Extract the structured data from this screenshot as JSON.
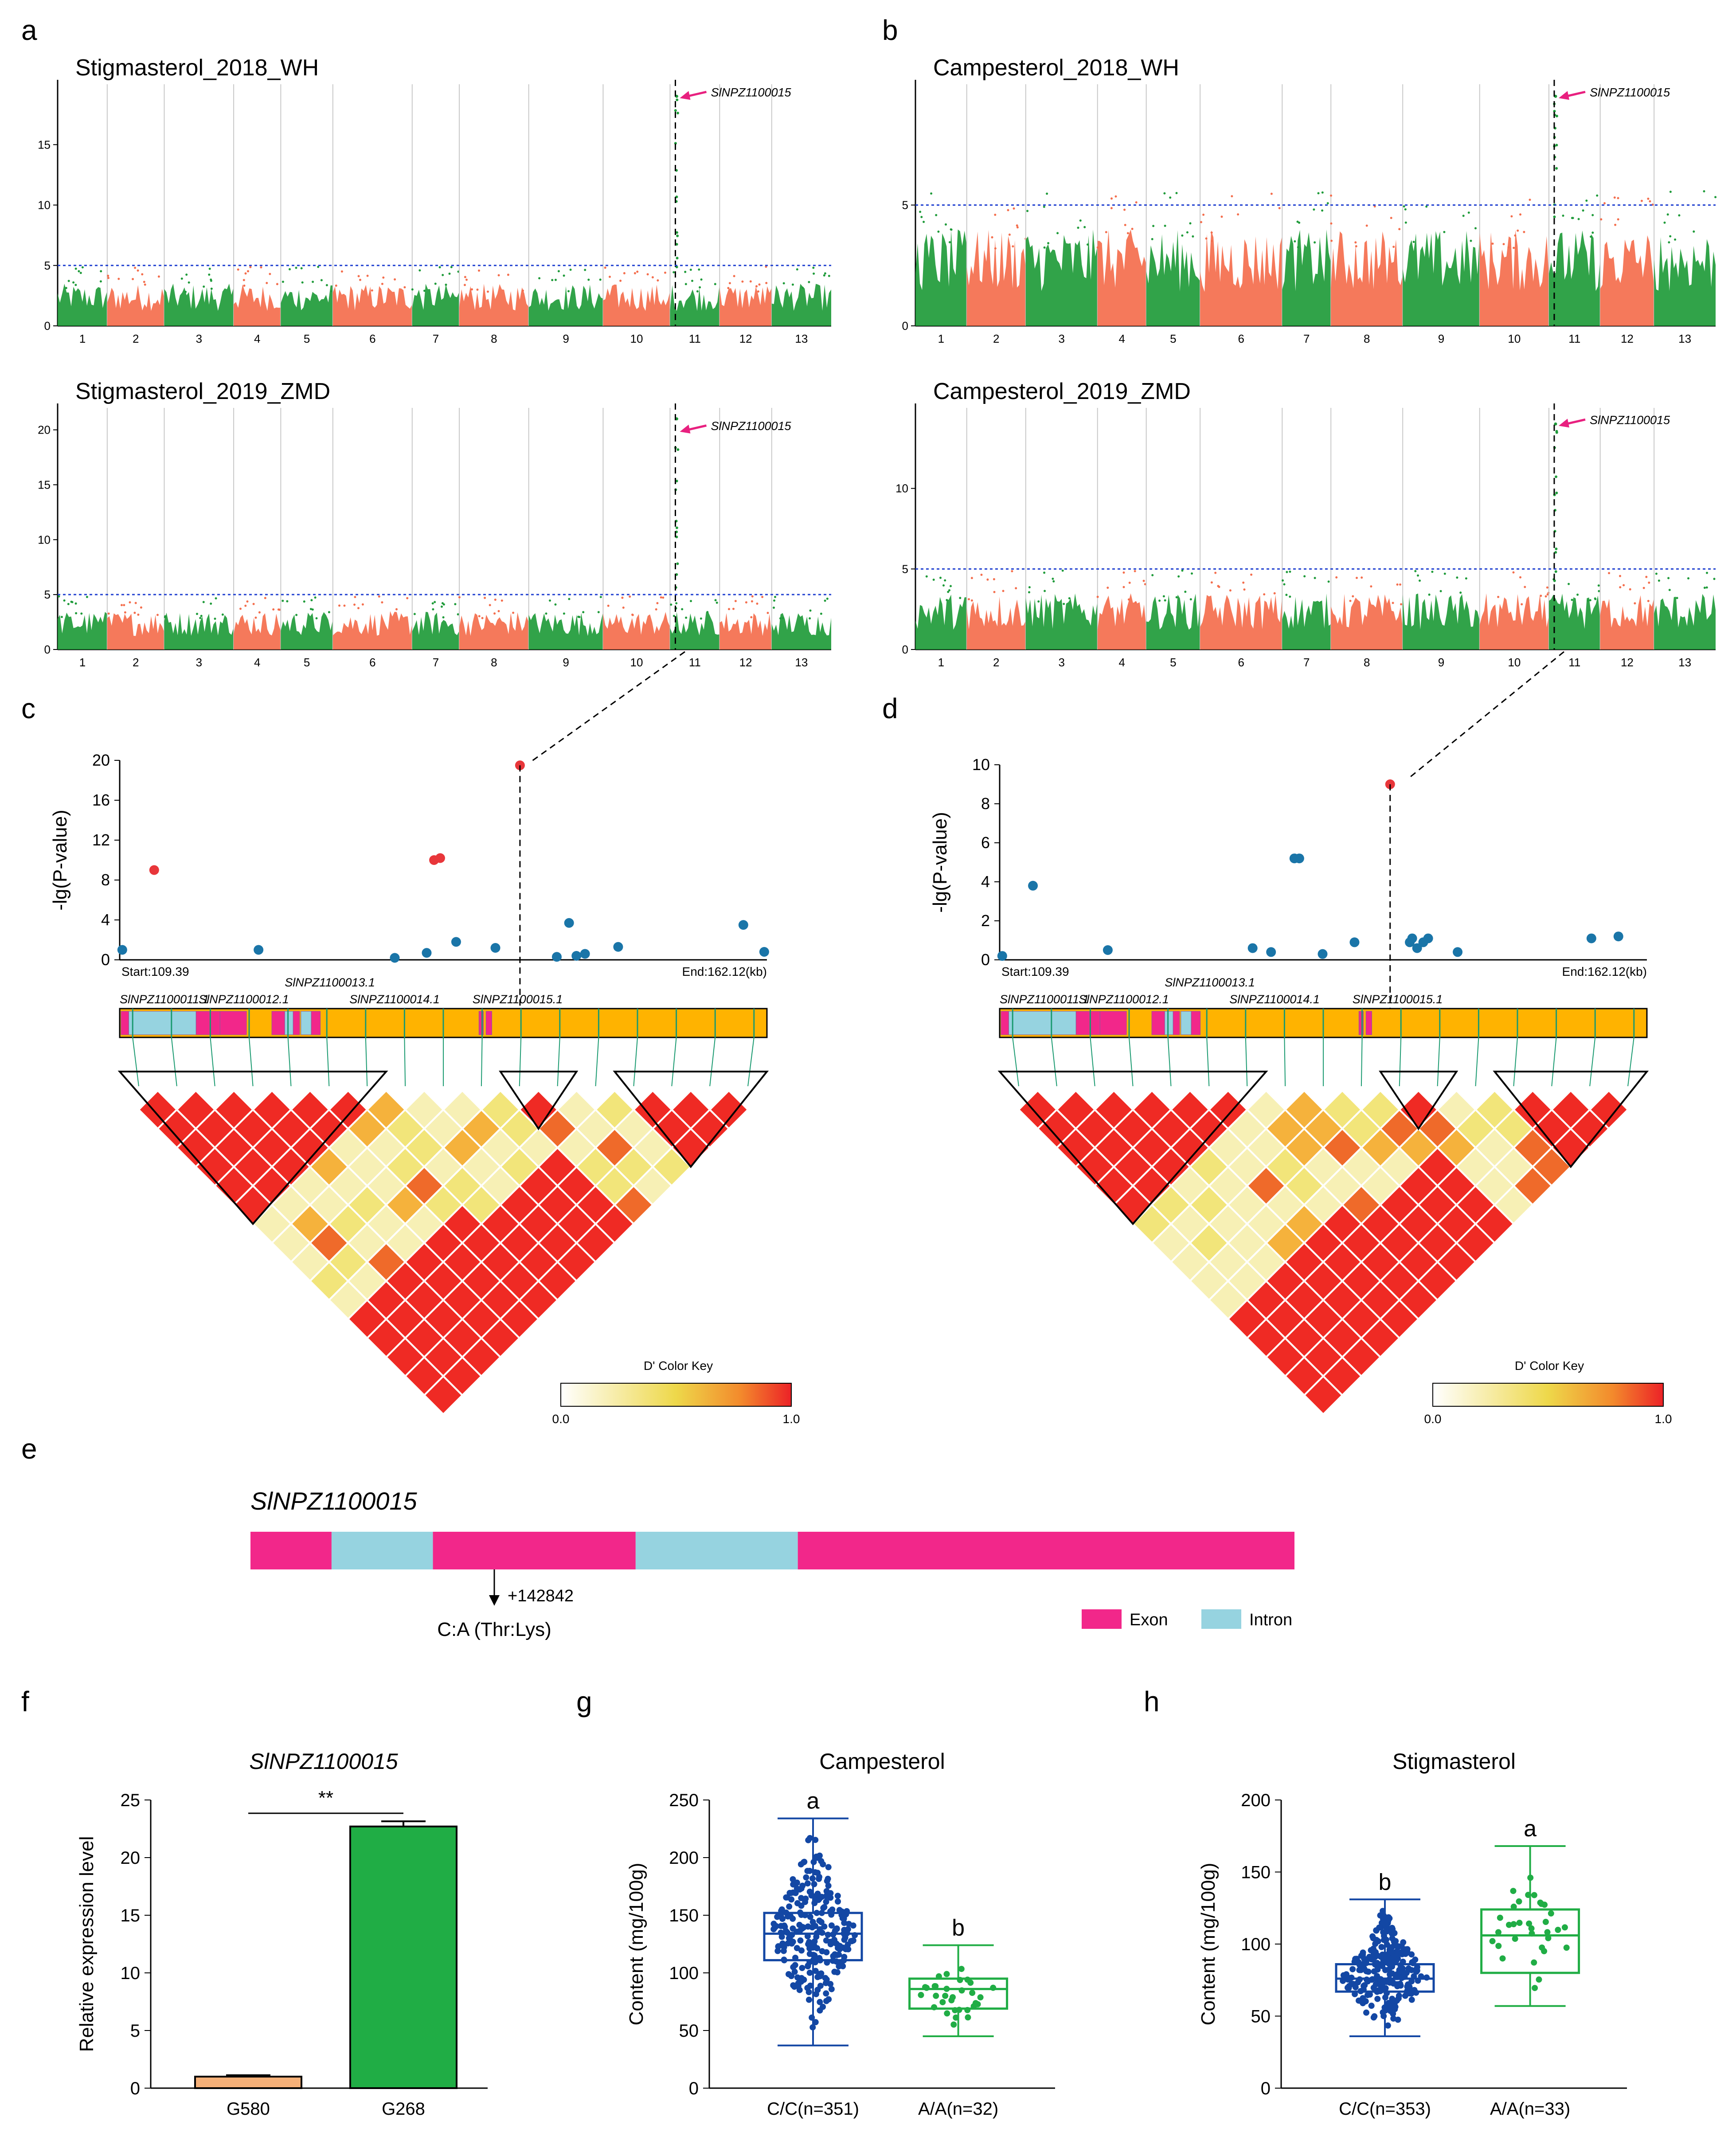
{
  "panel_labels": [
    "a",
    "b",
    "c",
    "d",
    "e",
    "f",
    "g",
    "h"
  ],
  "legend": {
    "color_key_title": "D' Color Key",
    "color_key_min": "0.0",
    "color_key_max": "1.0",
    "exon": "Exon",
    "intron": "Intron"
  },
  "colors": {
    "green": "#1f9b3a",
    "salmon": "#f46e4d",
    "exon": "#f2278a",
    "intron": "#96d3e0",
    "gene_bar": "#ffb300",
    "pink_arrow": "#e8207f",
    "blue_point": "#1a75a8",
    "red_point": "#e8363a",
    "box_blue": "#1347a4",
    "box_green": "#20ad45"
  },
  "chart_data": [
    {
      "id": "a1",
      "type": "scatter",
      "subtype": "manhattan",
      "title": "Stigmasterol_2018_WH",
      "ylim": [
        0,
        20
      ],
      "yticks": [
        0,
        5,
        10,
        15
      ],
      "threshold": 5,
      "chromosomes": [
        "1",
        "2",
        "3",
        "4",
        "5",
        "6",
        "7",
        "8",
        "9",
        "10",
        "11",
        "12",
        "13"
      ],
      "peak": {
        "chromosome": "11",
        "value": 19,
        "label": "SlNPZ1100015"
      },
      "baseline_max": 3.5
    },
    {
      "id": "a2",
      "type": "scatter",
      "subtype": "manhattan",
      "title": "Stigmasterol_2019_ZMD",
      "ylim": [
        0,
        22
      ],
      "yticks": [
        0,
        5,
        10,
        15,
        20
      ],
      "threshold": 5,
      "chromosomes": [
        "1",
        "2",
        "3",
        "4",
        "5",
        "6",
        "7",
        "8",
        "9",
        "10",
        "11",
        "12",
        "13"
      ],
      "peak": {
        "chromosome": "11",
        "value": 21,
        "label": "SlNPZ1100015"
      },
      "baseline_max": 3.5
    },
    {
      "id": "b1",
      "type": "scatter",
      "subtype": "manhattan",
      "title": "Campesterol_2018_WH",
      "ylim": [
        0,
        10
      ],
      "yticks": [
        0,
        5
      ],
      "threshold": 5,
      "chromosomes": [
        "1",
        "2",
        "3",
        "4",
        "5",
        "6",
        "7",
        "8",
        "9",
        "10",
        "11",
        "12",
        "13"
      ],
      "peak": {
        "chromosome": "11",
        "value": 9.5,
        "label": "SlNPZ1100015"
      },
      "baseline_max": 4
    },
    {
      "id": "b2",
      "type": "scatter",
      "subtype": "manhattan",
      "title": "Campesterol_2019_ZMD",
      "ylim": [
        0,
        15
      ],
      "yticks": [
        0,
        5,
        10
      ],
      "threshold": 5,
      "chromosomes": [
        "1",
        "2",
        "3",
        "4",
        "5",
        "6",
        "7",
        "8",
        "9",
        "10",
        "11",
        "12",
        "13"
      ],
      "peak": {
        "chromosome": "11",
        "value": 14,
        "label": "SlNPZ1100015"
      },
      "baseline_max": 3.5
    },
    {
      "id": "c",
      "type": "scatter",
      "subtype": "regional",
      "ylabel": "-lg(P-value)",
      "ylim": [
        0,
        20
      ],
      "yticks": [
        0,
        4,
        8,
        12,
        16,
        20
      ],
      "start_label": "Start:109.39",
      "end_label": "End:162.12(kb)",
      "xlim": [
        109.39,
        162.12
      ],
      "points": [
        {
          "x": 109.6,
          "y": 1.0,
          "sig": false
        },
        {
          "x": 112.2,
          "y": 9.0,
          "sig": true
        },
        {
          "x": 120.7,
          "y": 1.0,
          "sig": false
        },
        {
          "x": 131.8,
          "y": 0.2,
          "sig": false
        },
        {
          "x": 134.4,
          "y": 0.7,
          "sig": false
        },
        {
          "x": 135.0,
          "y": 10.0,
          "sig": true
        },
        {
          "x": 135.5,
          "y": 10.2,
          "sig": true
        },
        {
          "x": 136.8,
          "y": 1.8,
          "sig": false
        },
        {
          "x": 140.0,
          "y": 1.2,
          "sig": false
        },
        {
          "x": 142.0,
          "y": 19.5,
          "sig": true
        },
        {
          "x": 145.0,
          "y": 0.3,
          "sig": false
        },
        {
          "x": 146.0,
          "y": 3.7,
          "sig": false
        },
        {
          "x": 146.6,
          "y": 0.4,
          "sig": false
        },
        {
          "x": 147.3,
          "y": 0.6,
          "sig": false
        },
        {
          "x": 150.0,
          "y": 1.3,
          "sig": false
        },
        {
          "x": 160.2,
          "y": 3.5,
          "sig": false
        },
        {
          "x": 161.9,
          "y": 0.8,
          "sig": false
        }
      ],
      "genes": [
        "SlNPZ1100011.1",
        "SlNPZ1100012.1",
        "SlNPZ1100013.1",
        "SlNPZ1100014.1",
        "SlNPZ1100015.1"
      ]
    },
    {
      "id": "d",
      "type": "scatter",
      "subtype": "regional",
      "ylabel": "-lg(P-value)",
      "ylim": [
        0,
        10
      ],
      "yticks": [
        0,
        2,
        4,
        6,
        8,
        10
      ],
      "start_label": "Start:109.39",
      "end_label": "End:162.12(kb)",
      "xlim": [
        109.39,
        162.12
      ],
      "points": [
        {
          "x": 109.6,
          "y": 0.2,
          "sig": false
        },
        {
          "x": 112.1,
          "y": 3.8,
          "sig": false
        },
        {
          "x": 118.2,
          "y": 0.5,
          "sig": false
        },
        {
          "x": 130.0,
          "y": 0.6,
          "sig": false
        },
        {
          "x": 131.5,
          "y": 0.4,
          "sig": false
        },
        {
          "x": 133.4,
          "y": 5.2,
          "sig": false
        },
        {
          "x": 133.8,
          "y": 5.2,
          "sig": false
        },
        {
          "x": 135.7,
          "y": 0.3,
          "sig": false
        },
        {
          "x": 138.3,
          "y": 0.9,
          "sig": false
        },
        {
          "x": 141.2,
          "y": 9.0,
          "sig": true
        },
        {
          "x": 142.8,
          "y": 0.9,
          "sig": false
        },
        {
          "x": 143.0,
          "y": 1.1,
          "sig": false
        },
        {
          "x": 143.4,
          "y": 0.6,
          "sig": false
        },
        {
          "x": 143.9,
          "y": 0.9,
          "sig": false
        },
        {
          "x": 144.3,
          "y": 1.1,
          "sig": false
        },
        {
          "x": 146.7,
          "y": 0.4,
          "sig": false
        },
        {
          "x": 157.6,
          "y": 1.1,
          "sig": false
        },
        {
          "x": 159.8,
          "y": 1.2,
          "sig": false
        }
      ],
      "genes": [
        "SlNPZ1100011.1",
        "SlNPZ1100012.1",
        "SlNPZ1100013.1",
        "SlNPZ1100014.1",
        "SlNPZ1100015.1"
      ]
    },
    {
      "id": "e",
      "type": "table",
      "subtype": "gene_structure",
      "gene": "SlNPZ1100015",
      "segments": [
        {
          "type": "exon",
          "length": 8
        },
        {
          "type": "intron",
          "length": 10
        },
        {
          "type": "exon",
          "length": 20
        },
        {
          "type": "intron",
          "length": 16
        },
        {
          "type": "exon",
          "length": 49
        }
      ],
      "snp_position": "+142842",
      "snp_change": "C:A (Thr:Lys)"
    },
    {
      "id": "f",
      "type": "bar",
      "title": "SlNPZ1100015",
      "categories": [
        "G580",
        "G268"
      ],
      "values": [
        1.0,
        22.7
      ],
      "errors": [
        0.12,
        0.45
      ],
      "ylabel": "Relative expression level",
      "ylim": [
        0,
        25
      ],
      "yticks": [
        0,
        5,
        10,
        15,
        20,
        25
      ],
      "significance": "**"
    },
    {
      "id": "g",
      "type": "box",
      "title": "Campesterol",
      "ylabel": "Content (mg/100g)",
      "ylim": [
        0,
        250
      ],
      "yticks": [
        0,
        50,
        100,
        150,
        200,
        250
      ],
      "categories": [
        "C/C(n=351)",
        "A/A(n=32)"
      ],
      "boxes": [
        {
          "min": 37,
          "q1": 111,
          "median": 134,
          "q3": 152,
          "max": 234,
          "n": 351,
          "letter": "a"
        },
        {
          "min": 45,
          "q1": 69,
          "median": 86,
          "q3": 95,
          "max": 124,
          "n": 32,
          "letter": "b"
        }
      ]
    },
    {
      "id": "h",
      "type": "box",
      "title": "Stigmasterol",
      "ylabel": "Content (mg/100g)",
      "ylim": [
        0,
        200
      ],
      "yticks": [
        0,
        50,
        100,
        150,
        200
      ],
      "categories": [
        "C/C(n=353)",
        "A/A(n=33)"
      ],
      "boxes": [
        {
          "min": 36,
          "q1": 67,
          "median": 76,
          "q3": 86,
          "max": 131,
          "n": 353,
          "letter": "b"
        },
        {
          "min": 57,
          "q1": 80,
          "median": 106,
          "q3": 124,
          "max": 168,
          "n": 33,
          "letter": "a"
        }
      ]
    }
  ]
}
